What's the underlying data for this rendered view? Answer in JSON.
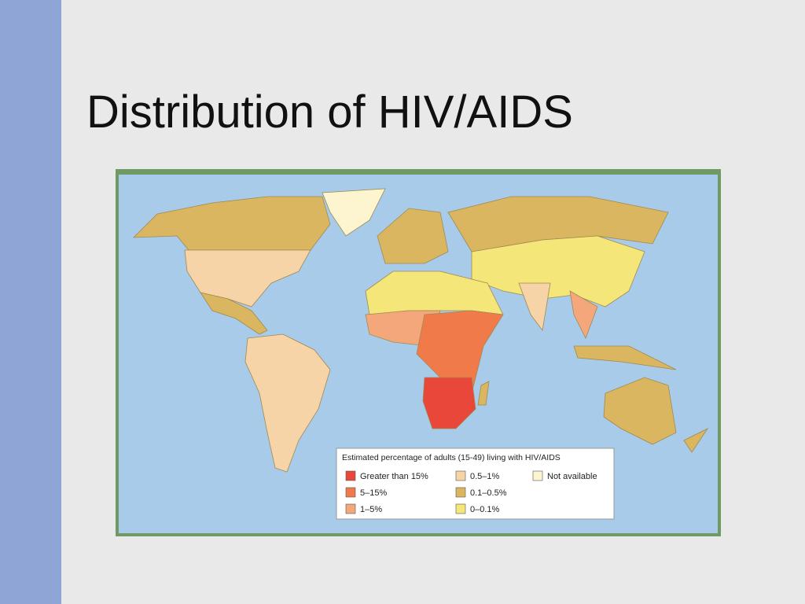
{
  "title": "Distribution of HIV/AIDS",
  "legend": {
    "title": "Estimated percentage of adults (15-49) living with HIV/AIDS",
    "items": [
      {
        "label": "Greater than 15%",
        "color": "#e8473a"
      },
      {
        "label": "5–15%",
        "color": "#f07a4a"
      },
      {
        "label": "1–5%",
        "color": "#f5a77c"
      },
      {
        "label": "0.5–1%",
        "color": "#f7d3a8"
      },
      {
        "label": "0.1–0.5%",
        "color": "#d9b65f"
      },
      {
        "label": "0–0.1%",
        "color": "#f4e679"
      },
      {
        "label": "Not available",
        "color": "#fdf5cf"
      }
    ]
  }
}
